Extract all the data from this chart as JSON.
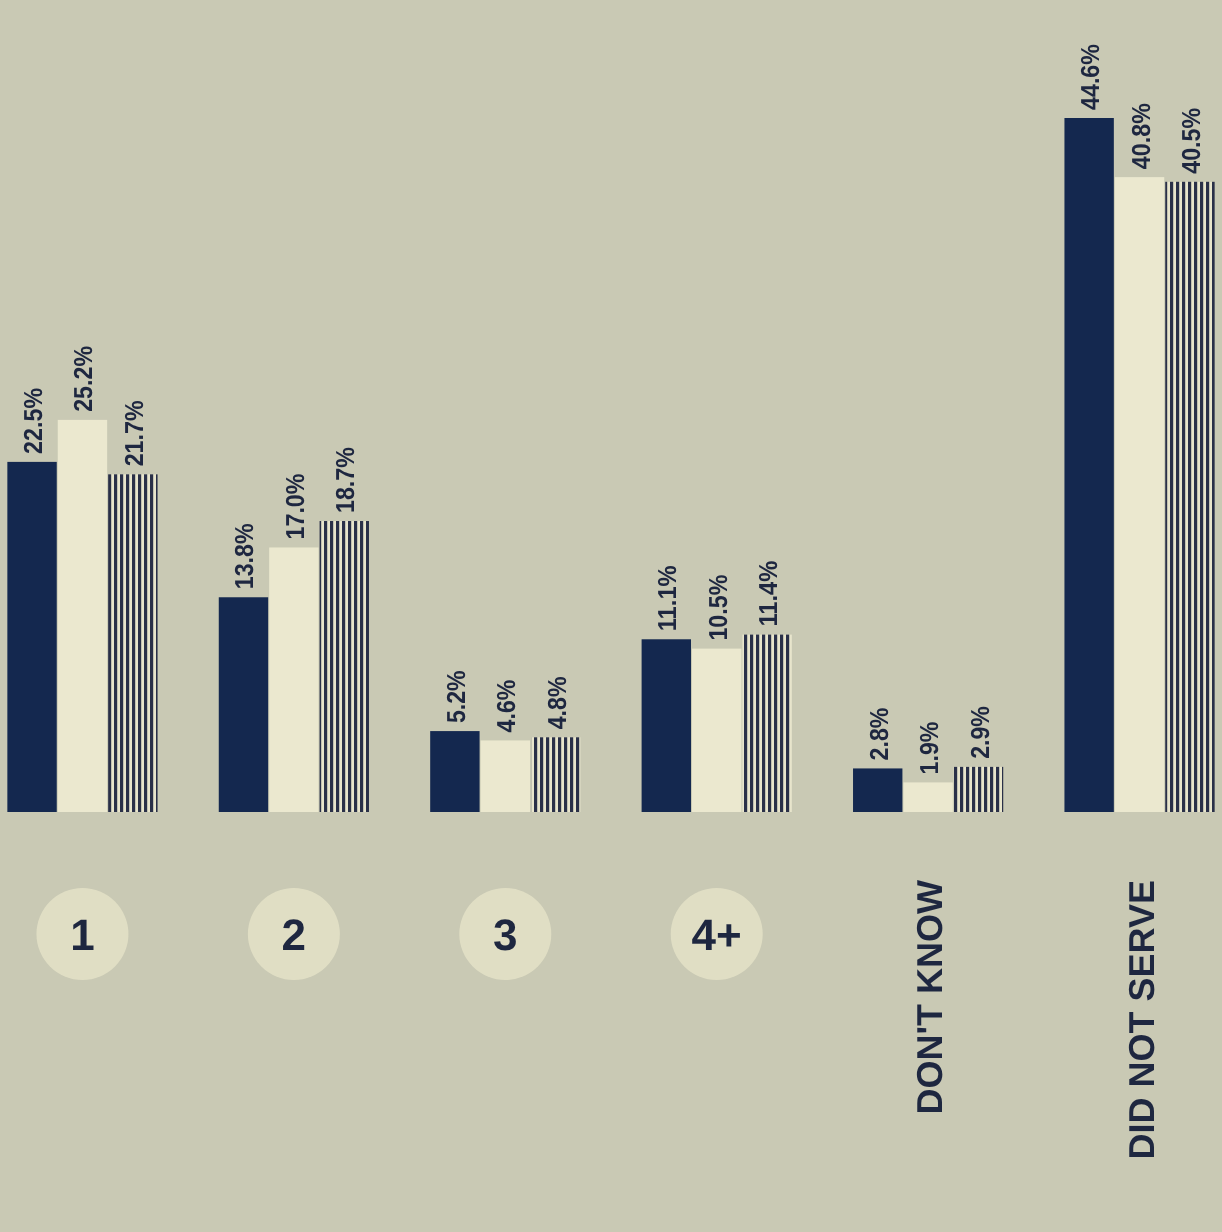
{
  "chart_data": {
    "type": "bar",
    "categories": [
      "1",
      "2",
      "3",
      "4+",
      "DON'T KNOW",
      "DID NOT SERVE"
    ],
    "series": [
      {
        "color": "#14284f",
        "values": [
          22.5,
          13.8,
          5.2,
          11.1,
          2.8,
          44.6
        ],
        "value_labels": [
          "22.5%",
          "13.8%",
          "5.2%",
          "11.1%",
          "2.8%",
          "44.6%"
        ]
      },
      {
        "color": "#ebe8cf",
        "values": [
          25.2,
          17.0,
          4.6,
          10.5,
          1.9,
          40.8
        ],
        "value_labels": [
          "25.2%",
          "17.0%",
          "4.6%",
          "10.5%",
          "1.9%",
          "40.8%"
        ]
      },
      {
        "color": "#2a3048",
        "values": [
          21.7,
          18.7,
          4.8,
          11.4,
          2.9,
          40.5
        ],
        "value_labels": [
          "21.7%",
          "18.7%",
          "4.8%",
          "11.4%",
          "2.9%",
          "40.5%"
        ]
      }
    ]
  }
}
